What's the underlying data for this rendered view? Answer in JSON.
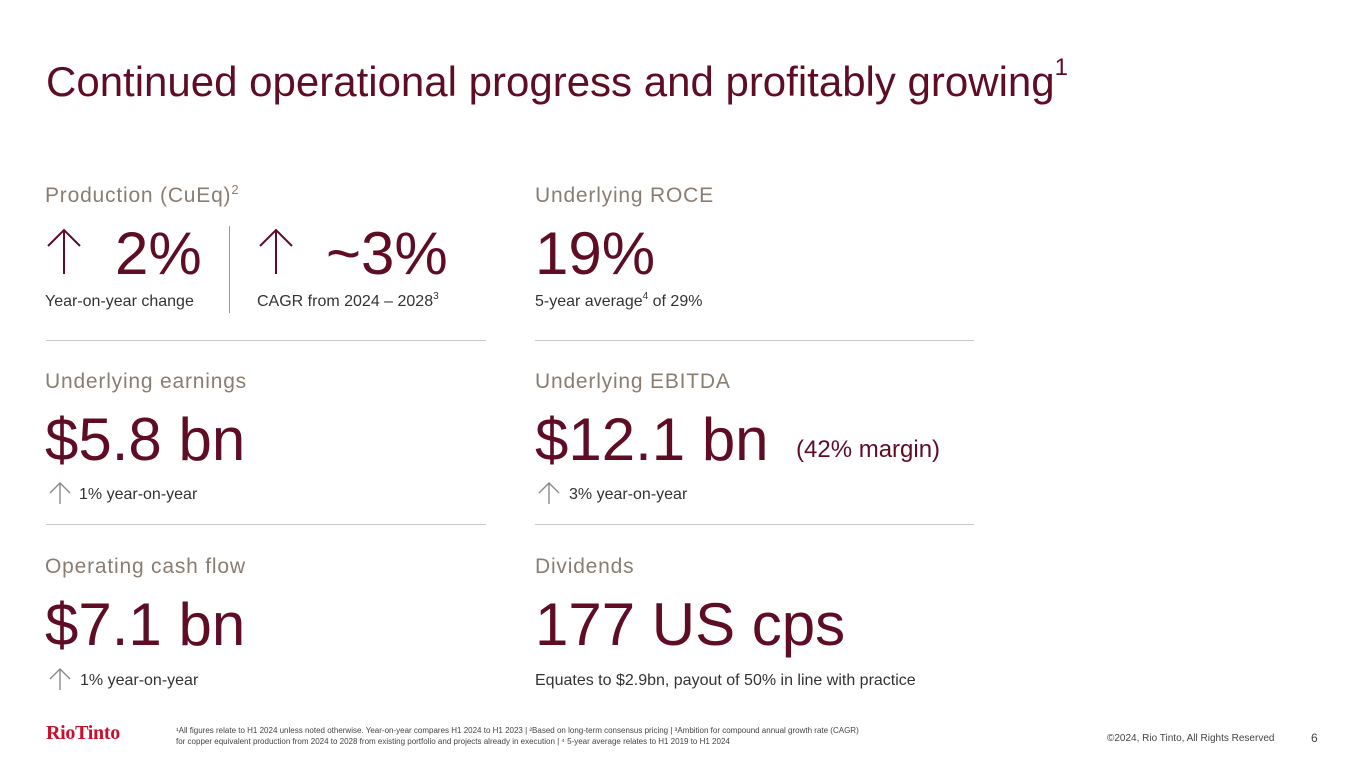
{
  "title": {
    "text": "Continued operational progress and profitably growing",
    "sup": "1"
  },
  "production": {
    "label": "Production (CuEq)",
    "label_sup": "2",
    "value1": "2%",
    "caption1": "Year-on-year change",
    "value2": "~3%",
    "caption2": "CAGR from 2024 – 2028",
    "caption2_sup": "3"
  },
  "roce": {
    "label": "Underlying ROCE",
    "value": "19%",
    "caption_pre": "5-year average",
    "caption_sup": "4",
    "caption_post": " of 29%"
  },
  "earnings": {
    "label": "Underlying earnings",
    "value": "$5.8 bn",
    "change": "1% year-on-year"
  },
  "ebitda": {
    "label": "Underlying EBITDA",
    "value": "$12.1 bn",
    "margin": "(42% margin)",
    "change": "3% year-on-year"
  },
  "cashflow": {
    "label": "Operating cash flow",
    "value": "$7.1 bn",
    "change": "1% year-on-year"
  },
  "dividends": {
    "label": "Dividends",
    "value": "177 US cps",
    "caption": "Equates to $2.9bn, payout of 50% in line with practice"
  },
  "footer": {
    "logo": "RioTinto",
    "footnote_line1": "¹All figures relate to H1 2024 unless noted otherwise. Year-on-year compares H1 2024 to H1 2023 | ²Based on long-term consensus pricing | ³Ambition for compound annual growth rate (CAGR)",
    "footnote_line2": "for copper equivalent production from 2024 to 2028 from existing portfolio and projects already in execution | ⁴ 5-year average relates to H1 2019 to H1 2024",
    "copyright": "©2024, Rio Tinto, All Rights Reserved",
    "page": "6"
  },
  "colors": {
    "primary": "#5e0d24",
    "label": "#8a7d72",
    "rule": "#c9c9c9",
    "brand": "#c8102e"
  },
  "icons": {
    "up_arrow": "arrow-up-icon"
  }
}
